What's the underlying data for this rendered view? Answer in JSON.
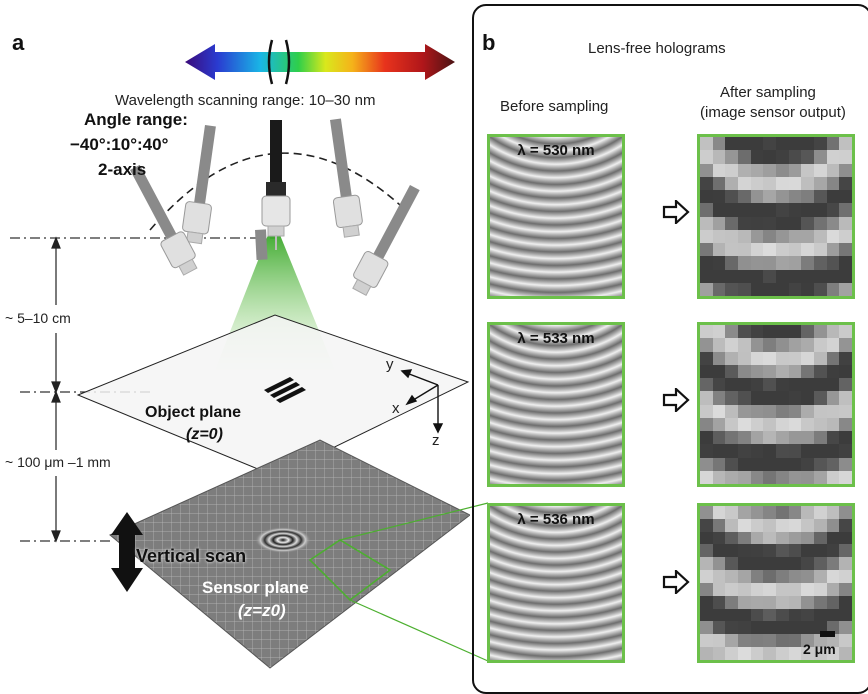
{
  "panel_a": {
    "letter": "a",
    "wavelength_range": "Wavelength scanning range: 10–30 nm",
    "angle_range_line1": "Angle range:",
    "angle_range_line2": "−40°:10°:40°",
    "angle_range_line3": "2-axis",
    "distance_upper": "~ 5–10 cm",
    "distance_lower": "~ 100 μm –1 mm",
    "object_plane_line1": "Object plane",
    "object_plane_line2": "(z=0)",
    "axis_y": "y",
    "axis_x": "x",
    "axis_z": "z",
    "vertical_scan": "Vertical scan",
    "sensor_plane_line1": "Sensor plane",
    "sensor_plane_line2": "(z=z0)",
    "colors": {
      "green_beam": "#4caf2f",
      "hologram_border": "#6cc04a"
    }
  },
  "panel_b": {
    "letter": "b",
    "title": "Lens-free holograms",
    "col_before": "Before sampling",
    "col_after_line1": "After sampling",
    "col_after_line2": "(image sensor output)",
    "wavelengths": [
      "λ = 530 nm",
      "λ = 533 nm",
      "λ = 536 nm"
    ],
    "scale_bar": "2 μm"
  }
}
